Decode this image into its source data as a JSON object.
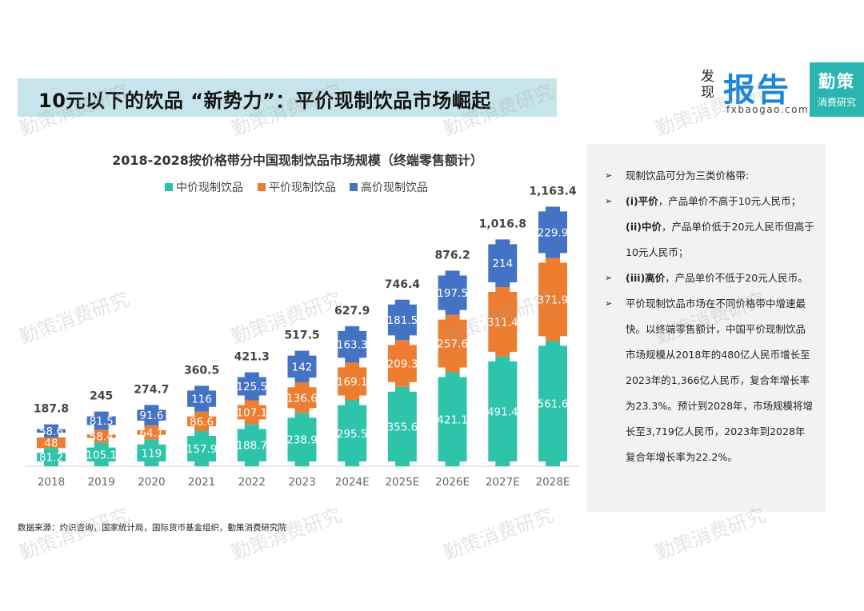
{
  "header": {
    "title": "10元以下的饮品 “新势力”：平价现制饮品市场崛起"
  },
  "logos": {
    "fxbaogao_small": "发现",
    "fxbaogao_big": "报告",
    "fxbaogao_url": "fxbaogao.com",
    "qince_line1": "勤策",
    "qince_line2": "消费研究"
  },
  "colors": {
    "mid": "#2ec4a9",
    "low": "#ed7d31",
    "high": "#4472c4"
  },
  "chart_data": {
    "type": "bar",
    "stacked": true,
    "title": "2018-2028按价格带分中国现制饮品市场规模（终端零售额计）",
    "legend_position": "top",
    "categories": [
      "2018",
      "2019",
      "2020",
      "2021",
      "2022",
      "2023",
      "2024E",
      "2025E",
      "2026E",
      "2027E",
      "2028E"
    ],
    "series": [
      {
        "name": "中价现制饮品",
        "values": [
          "81.2",
          "105.1",
          "119",
          "157.9",
          "188.7",
          "238.9",
          "295.5",
          "355.6",
          "421.1",
          "491.4",
          "561.6"
        ]
      },
      {
        "name": "平价现制饮品",
        "values": [
          "48",
          "58.4",
          "64.1",
          "86.6",
          "107.1",
          "136.6",
          "169.1",
          "209.3",
          "257.6",
          "311.4",
          "371.9"
        ]
      },
      {
        "name": "高价现制饮品",
        "values": [
          "58.6",
          "81.5",
          "91.6",
          "116",
          "125.5",
          "142",
          "163.3",
          "181.5",
          "197.5",
          "214",
          "229.9"
        ]
      }
    ],
    "totals": [
      "187.8",
      "245",
      "274.7",
      "360.5",
      "421.3",
      "517.5",
      "627.9",
      "746.4",
      "876.2",
      "1,016.8",
      "1,163.4"
    ],
    "ylim": [
      0,
      1200
    ],
    "xlabel": "",
    "ylabel": ""
  },
  "side": {
    "items": [
      {
        "bold": "",
        "text": "现制饮品可分为三类价格带:"
      },
      {
        "bold": "(i)平价",
        "text": "，产品单价不高于10元人民币；"
      },
      {
        "bold": "(ii)中价",
        "text": "，产品单价低于20元人民币但高于10元人民币；"
      },
      {
        "bold": "(iii)高价",
        "text": "，产品单价不低于20元人民币。"
      },
      {
        "bold": "",
        "text": "平价现制饮品市场在不同价格带中增速最快。以终端零售额计，中国平价现制饮品市场规模从2018年的480亿人民币增长至2023年的1,366亿人民币，复合年增长率为23.3%。预计到2028年，市场规模将增长至3,719亿人民币，2023年到2028年复合年增长率为22.2%。"
      }
    ],
    "bullet": "➢"
  },
  "source": "数据来源：灼识咨询，国家统计局，国际货币基金组织，勤策消费研究院",
  "watermark": "勤策消费研究"
}
